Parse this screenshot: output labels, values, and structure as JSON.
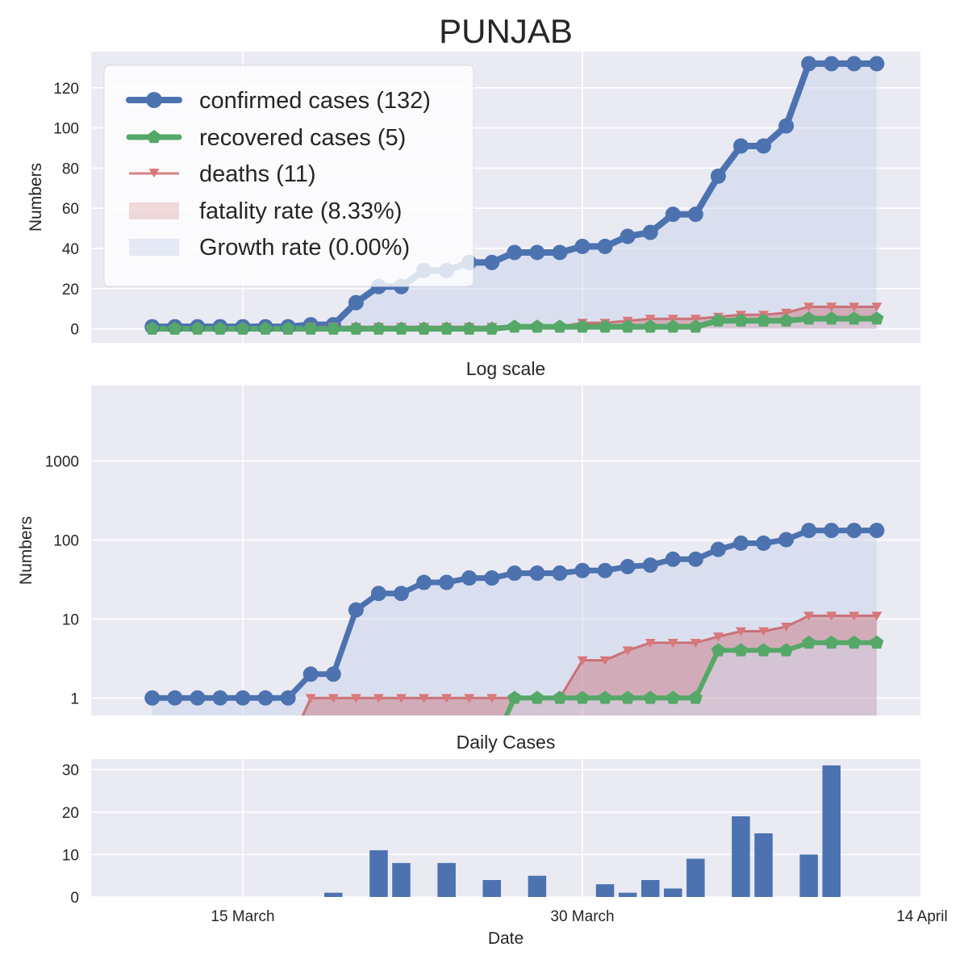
{
  "figure_title": "PUNJAB",
  "x_axis": {
    "label": "Date",
    "ticks": [
      {
        "date": "2020-03-15",
        "label": "15 March"
      },
      {
        "date": "2020-03-30",
        "label": "30 March"
      },
      {
        "date": "2020-04-14",
        "label": "14 April"
      }
    ]
  },
  "colors": {
    "confirmed": "#4c72b0",
    "recovered": "#55a868",
    "deaths": "#c44e52",
    "fatality_fill": "#c44e52",
    "growth_fill": "#c8d2ea",
    "panel_bg": "#eaeaf2",
    "grid": "#ffffff",
    "text": "#262626"
  },
  "chart_data": [
    {
      "type": "line",
      "title": "",
      "xlabel": "",
      "ylabel": "Numbers",
      "ylim": [
        -7,
        138
      ],
      "yticks": [
        0,
        20,
        40,
        60,
        80,
        100,
        120
      ],
      "grid": true,
      "legend": {
        "placement": "upper-left",
        "entries": [
          {
            "label": "confirmed cases (132)",
            "series": "confirmed",
            "kind": "line-circle"
          },
          {
            "label": "recovered cases (5)",
            "series": "recovered",
            "kind": "line-pentagon"
          },
          {
            "label": "deaths (11)",
            "series": "deaths",
            "kind": "line-triangle"
          },
          {
            "label": "fatality rate (8.33%)",
            "series": "fatality",
            "kind": "patch"
          },
          {
            "label": "Growth rate (0.00%)",
            "series": "growth",
            "kind": "patch"
          }
        ]
      }
    },
    {
      "type": "line",
      "title": "Log scale",
      "xlabel": "",
      "ylabel": "Numbers",
      "yscale": "log",
      "ylim": [
        0.6,
        9000
      ],
      "yticks": [
        1,
        10,
        100,
        1000
      ],
      "ytick_labels": [
        "1",
        "10",
        "100",
        "1000"
      ],
      "grid": true
    },
    {
      "type": "bar",
      "title": "Daily Cases",
      "xlabel": "Date",
      "ylabel": "",
      "ylim": [
        0,
        32.5
      ],
      "yticks": [
        0,
        10,
        20,
        30
      ],
      "grid": true
    }
  ],
  "series": {
    "dates": [
      "2020-03-11",
      "2020-03-12",
      "2020-03-13",
      "2020-03-14",
      "2020-03-15",
      "2020-03-16",
      "2020-03-17",
      "2020-03-18",
      "2020-03-19",
      "2020-03-20",
      "2020-03-21",
      "2020-03-22",
      "2020-03-23",
      "2020-03-24",
      "2020-03-25",
      "2020-03-26",
      "2020-03-27",
      "2020-03-28",
      "2020-03-29",
      "2020-03-30",
      "2020-03-31",
      "2020-04-01",
      "2020-04-02",
      "2020-04-03",
      "2020-04-04",
      "2020-04-05",
      "2020-04-06",
      "2020-04-07",
      "2020-04-08",
      "2020-04-09",
      "2020-04-10",
      "2020-04-11",
      "2020-04-12"
    ],
    "confirmed": [
      1,
      1,
      1,
      1,
      1,
      1,
      1,
      2,
      2,
      13,
      21,
      21,
      29,
      29,
      33,
      33,
      38,
      38,
      38,
      41,
      41,
      46,
      48,
      57,
      57,
      76,
      91,
      91,
      101,
      132,
      132,
      132,
      132
    ],
    "recovered": [
      0,
      0,
      0,
      0,
      0,
      0,
      0,
      0,
      0,
      0,
      0,
      0,
      0,
      0,
      0,
      0,
      1,
      1,
      1,
      1,
      1,
      1,
      1,
      1,
      1,
      4,
      4,
      4,
      4,
      5,
      5,
      5,
      5
    ],
    "deaths": [
      0,
      0,
      0,
      0,
      0,
      0,
      0,
      1,
      1,
      1,
      1,
      1,
      1,
      1,
      1,
      1,
      1,
      1,
      1,
      3,
      3,
      4,
      5,
      5,
      5,
      6,
      7,
      7,
      8,
      11,
      11,
      11,
      11
    ],
    "daily_dates": [
      "2020-03-19",
      "2020-03-21",
      "2020-03-22",
      "2020-03-24",
      "2020-03-26",
      "2020-03-28",
      "2020-03-31",
      "2020-04-01",
      "2020-04-02",
      "2020-04-03",
      "2020-04-04",
      "2020-04-06",
      "2020-04-07",
      "2020-04-09",
      "2020-04-10"
    ],
    "daily_values": [
      1,
      11,
      8,
      8,
      4,
      5,
      3,
      1,
      4,
      2,
      9,
      19,
      15,
      10,
      31
    ]
  }
}
